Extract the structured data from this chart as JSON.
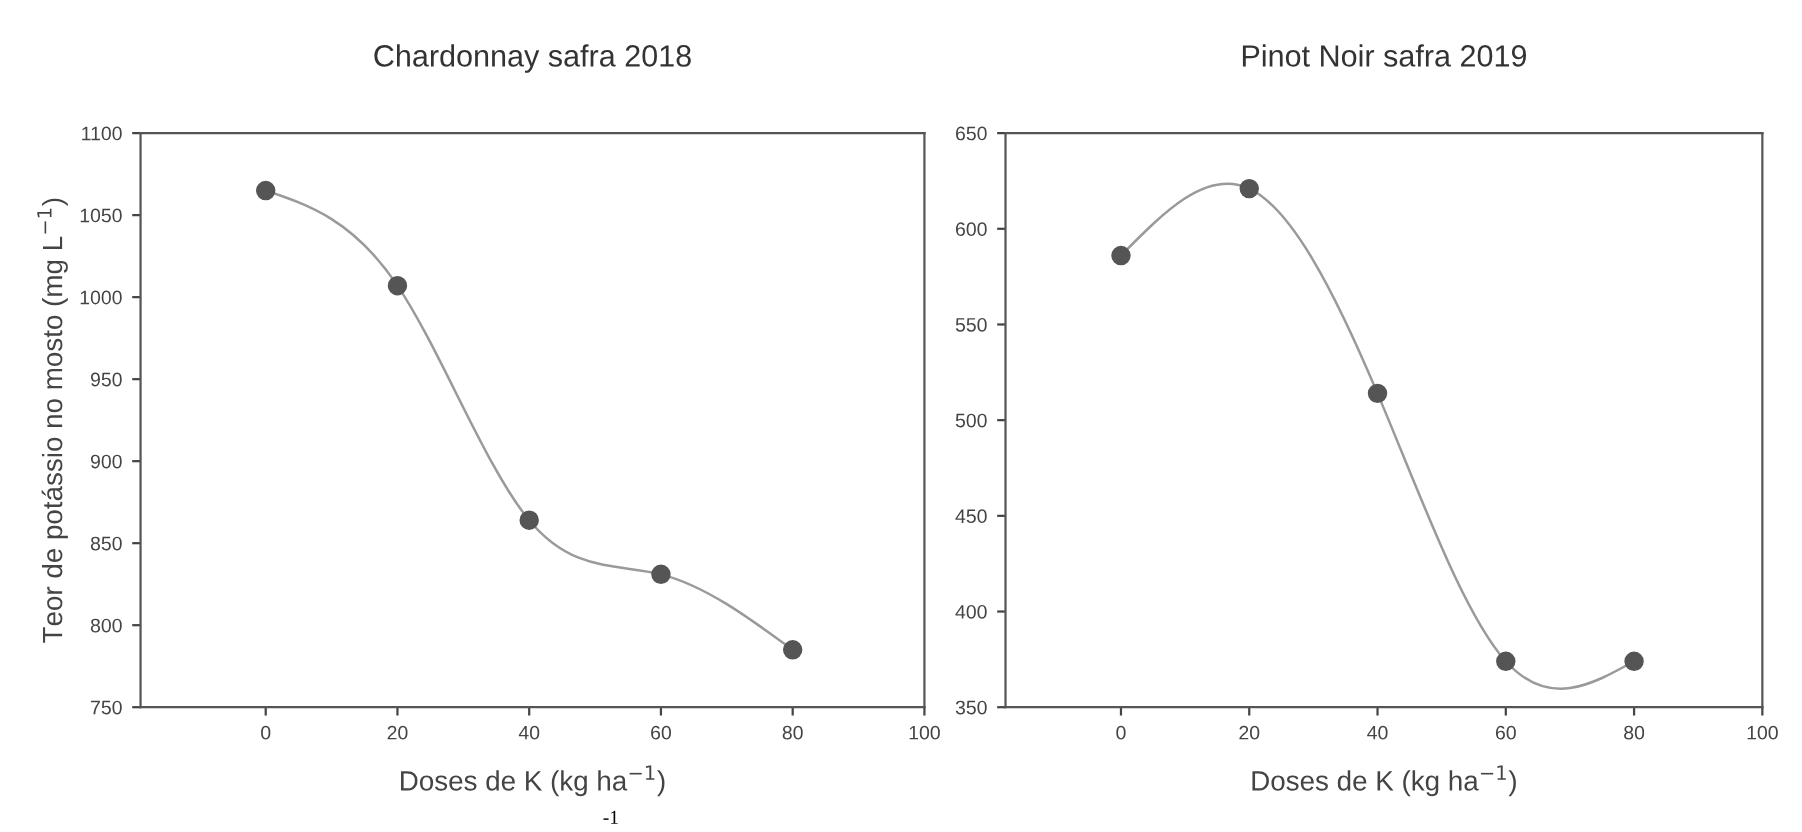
{
  "chart_data": [
    {
      "type": "line",
      "title": "Chardonnay safra 2018",
      "xlabel": "Doses de K (kg ha$^{−1}$)",
      "ylabel": "Teor de potássio no mosto (mg L$^{−1}$)",
      "x": [
        0,
        20,
        40,
        60,
        80
      ],
      "series": [
        {
          "color": "#555555",
          "values": [
            1065,
            1007,
            864,
            831,
            785
          ]
        }
      ],
      "xlim": [
        -19,
        100
      ],
      "xticks": [
        0,
        20,
        40,
        60,
        80,
        100
      ],
      "ylim": [
        750,
        1100
      ],
      "yticks": [
        750,
        800,
        850,
        900,
        950,
        1000,
        1050,
        1100
      ],
      "marker": "circle",
      "line_style": "solid",
      "grid": false,
      "legend": false,
      "annotations": [
        "-1"
      ]
    },
    {
      "type": "line",
      "title": "Pinot Noir safra 2019",
      "xlabel": "Doses de K (kg ha$^{−1}$)",
      "x": [
        0,
        20,
        40,
        60,
        80
      ],
      "series": [
        {
          "color": "#555555",
          "values": [
            586,
            621,
            514,
            374,
            374
          ]
        }
      ],
      "xlim": [
        -18,
        100
      ],
      "xticks": [
        0,
        20,
        40,
        60,
        80,
        100
      ],
      "ylim": [
        350,
        650
      ],
      "yticks": [
        350,
        400,
        450,
        500,
        550,
        600,
        650
      ],
      "marker": "circle",
      "line_style": "solid",
      "grid": false,
      "legend": false
    }
  ]
}
